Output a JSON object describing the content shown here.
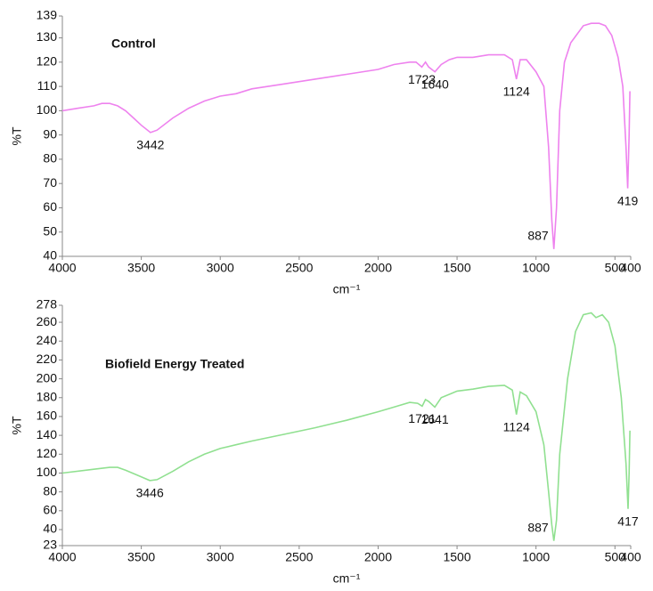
{
  "chart_data": [
    {
      "type": "line",
      "title": "Control",
      "x_label": "cm⁻¹",
      "y_label": "%T",
      "color": "#ee82ee",
      "xlim": [
        4000,
        400
      ],
      "xticks": [
        4000,
        3500,
        3000,
        2500,
        2000,
        1500,
        1000,
        500,
        400
      ],
      "ylim": [
        40,
        139
      ],
      "yticks": [
        40,
        50,
        60,
        70,
        80,
        90,
        100,
        110,
        120,
        130,
        139
      ],
      "x": [
        4000,
        3900,
        3800,
        3750,
        3700,
        3650,
        3600,
        3550,
        3500,
        3442,
        3400,
        3300,
        3200,
        3100,
        3000,
        2900,
        2800,
        2600,
        2400,
        2200,
        2000,
        1900,
        1800,
        1760,
        1723,
        1700,
        1680,
        1640,
        1600,
        1550,
        1500,
        1400,
        1300,
        1200,
        1150,
        1124,
        1100,
        1060,
        1000,
        950,
        920,
        900,
        887,
        870,
        850,
        820,
        780,
        700,
        650,
        600,
        560,
        520,
        480,
        450,
        430,
        419,
        410,
        405
      ],
      "values": [
        100,
        101,
        102,
        103,
        103,
        102,
        100,
        97,
        94,
        91,
        92,
        97,
        101,
        104,
        106,
        107,
        109,
        111,
        113,
        115,
        117,
        119,
        120,
        120,
        118,
        120,
        118,
        116,
        119,
        121,
        122,
        122,
        123,
        123,
        121,
        113,
        121,
        121,
        116,
        110,
        85,
        55,
        43,
        60,
        100,
        120,
        128,
        135,
        136,
        136,
        135,
        131,
        122,
        110,
        85,
        68,
        90,
        108
      ],
      "annotations": [
        {
          "x": 3442,
          "y": 91,
          "label": "3442"
        },
        {
          "x": 1723,
          "y": 118,
          "label": "1723"
        },
        {
          "x": 1640,
          "y": 116,
          "label": "1640"
        },
        {
          "x": 1124,
          "y": 113,
          "label": "1124"
        },
        {
          "x": 887,
          "y": 43,
          "label": "887"
        },
        {
          "x": 419,
          "y": 68,
          "label": "419"
        }
      ]
    },
    {
      "type": "line",
      "title": "Biofield Energy Treated",
      "x_label": "cm⁻¹",
      "y_label": "%T",
      "color": "#90e090",
      "xlim": [
        4000,
        400
      ],
      "xticks": [
        4000,
        3500,
        3000,
        2500,
        2000,
        1500,
        1000,
        500,
        400
      ],
      "ylim": [
        23,
        278
      ],
      "yticks": [
        23,
        40,
        60,
        80,
        100,
        120,
        140,
        160,
        180,
        200,
        220,
        240,
        260,
        278
      ],
      "x": [
        4000,
        3800,
        3700,
        3650,
        3600,
        3500,
        3446,
        3400,
        3300,
        3200,
        3100,
        3000,
        2900,
        2800,
        2600,
        2400,
        2200,
        2000,
        1900,
        1800,
        1750,
        1721,
        1700,
        1680,
        1641,
        1600,
        1500,
        1400,
        1300,
        1200,
        1150,
        1124,
        1100,
        1060,
        1000,
        950,
        920,
        900,
        887,
        870,
        850,
        800,
        750,
        700,
        650,
        620,
        580,
        540,
        500,
        460,
        430,
        417,
        410,
        405
      ],
      "values": [
        100,
        104,
        106,
        106,
        103,
        96,
        92,
        93,
        102,
        112,
        120,
        126,
        130,
        134,
        141,
        148,
        156,
        165,
        170,
        175,
        174,
        171,
        178,
        176,
        170,
        180,
        187,
        189,
        192,
        193,
        188,
        162,
        186,
        182,
        165,
        130,
        80,
        45,
        28,
        50,
        120,
        200,
        250,
        268,
        270,
        265,
        268,
        260,
        235,
        180,
        110,
        62,
        100,
        145
      ],
      "annotations": [
        {
          "x": 3446,
          "y": 92,
          "label": "3446"
        },
        {
          "x": 1721,
          "y": 171,
          "label": "1721"
        },
        {
          "x": 1641,
          "y": 170,
          "label": "1641"
        },
        {
          "x": 1124,
          "y": 162,
          "label": "1124"
        },
        {
          "x": 887,
          "y": 28,
          "label": "887"
        },
        {
          "x": 417,
          "y": 62,
          "label": "417"
        }
      ]
    }
  ]
}
